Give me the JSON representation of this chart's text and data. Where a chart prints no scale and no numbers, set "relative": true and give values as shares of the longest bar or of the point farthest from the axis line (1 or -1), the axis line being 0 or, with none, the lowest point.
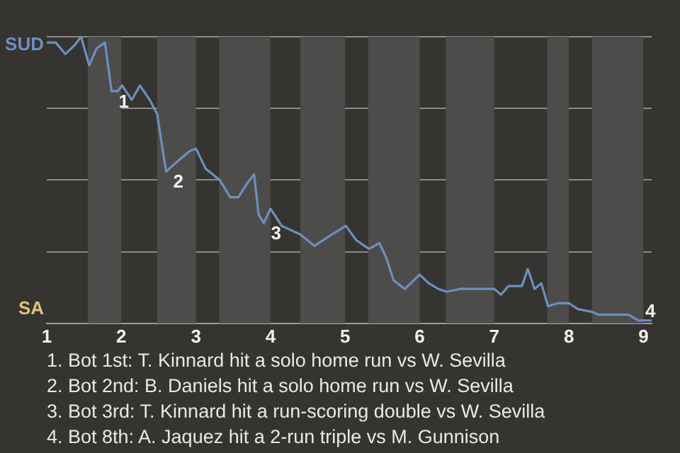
{
  "chart_data": {
    "type": "line",
    "marker": "none",
    "line_style": "solid",
    "grid": "y",
    "legend": false,
    "relative": true,
    "xlim": [
      1,
      9.11
    ],
    "xticks": [
      1,
      2,
      3,
      4,
      5,
      6,
      7,
      8,
      9
    ],
    "x": [
      1,
      1.12,
      1.25,
      1.37,
      1.46,
      1.57,
      1.67,
      1.78,
      1.87,
      1.95,
      2.01,
      2.14,
      2.25,
      2.38,
      2.48,
      2.6,
      2.73,
      2.91,
      3,
      3.13,
      3.32,
      3.46,
      3.57,
      3.69,
      3.78,
      3.84,
      3.91,
      4,
      4.15,
      4.4,
      4.59,
      4.76,
      5.01,
      5.15,
      5.32,
      5.46,
      5.55,
      5.65,
      5.8,
      6,
      6.12,
      6.25,
      6.36,
      6.54,
      6.74,
      7,
      7.09,
      7.19,
      7.37,
      7.45,
      7.54,
      7.63,
      7.72,
      7.85,
      8,
      8.12,
      8.31,
      8.4,
      8.8,
      8.93,
      9,
      9.11
    ],
    "series": [
      {
        "color": "#6d8fbf",
        "values": [
          0.98,
          0.98,
          0.94,
          0.97,
          1,
          0.9,
          0.96,
          0.98,
          0.81,
          0.81,
          0.83,
          0.78,
          0.83,
          0.78,
          0.73,
          0.53,
          0.56,
          0.6,
          0.61,
          0.54,
          0.5,
          0.44,
          0.44,
          0.49,
          0.52,
          0.38,
          0.35,
          0.4,
          0.34,
          0.31,
          0.27,
          0.3,
          0.34,
          0.29,
          0.26,
          0.28,
          0.23,
          0.15,
          0.12,
          0.17,
          0.14,
          0.12,
          0.11,
          0.12,
          0.12,
          0.12,
          0.1,
          0.13,
          0.13,
          0.19,
          0.12,
          0.14,
          0.06,
          0.07,
          0.07,
          0.05,
          0.04,
          0.03,
          0.03,
          0.01,
          0.01,
          0.01
        ]
      }
    ],
    "bands": [
      {
        "axis": "x",
        "from": 1.55,
        "to": 2,
        "color": "#4d4c4a"
      },
      {
        "axis": "x",
        "from": 2.48,
        "to": 3,
        "color": "#4d4c4a"
      },
      {
        "axis": "x",
        "from": 3.31,
        "to": 4,
        "color": "#4d4c4a"
      },
      {
        "axis": "x",
        "from": 4.4,
        "to": 5,
        "color": "#4d4c4a"
      },
      {
        "axis": "x",
        "from": 5.31,
        "to": 6,
        "color": "#4d4c4a"
      },
      {
        "axis": "x",
        "from": 6.35,
        "to": 7,
        "color": "#4d4c4a"
      },
      {
        "axis": "x",
        "from": 7.71,
        "to": 8,
        "color": "#4d4c4a"
      },
      {
        "axis": "x",
        "from": 8.31,
        "to": 9,
        "color": "#4d4c4a"
      }
    ],
    "annotations": [
      "SUD",
      "SA",
      {
        "text": "1",
        "x": 1.87,
        "y": 0.81
      },
      {
        "text": "2",
        "x": 2.6,
        "y": 0.53
      },
      {
        "text": "3",
        "x": 3.91,
        "y": 0.35
      },
      {
        "text": "4",
        "x": 8.93,
        "y": 0.01
      },
      "1. Bot 1st: T. Kinnard hit a solo home run vs W. Sevilla",
      "2. Bot 2nd: B. Daniels hit a solo home run vs W. Sevilla",
      "3. Bot 3rd: T. Kinnard hit a run-scoring double vs W. Sevilla",
      "4. Bot 8th: A. Jaquez hit a 2-run triple vs M. Gunnison"
    ]
  }
}
